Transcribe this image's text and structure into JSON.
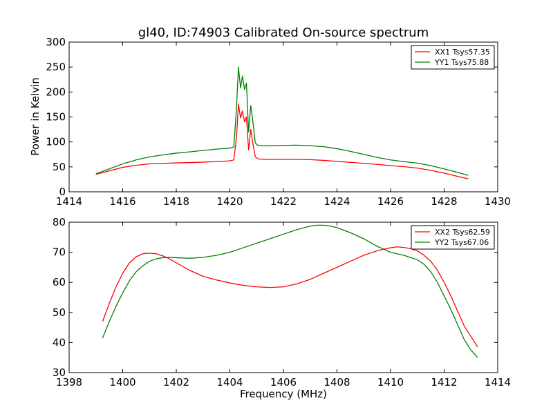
{
  "title": "gl40, ID:74903 Calibrated On-source spectrum",
  "chart_data": [
    {
      "type": "line",
      "ylabel": "Power in Kelvin",
      "xlabel": "",
      "xlim": [
        1414,
        1430
      ],
      "ylim": [
        0,
        300
      ],
      "xticks": [
        "1414",
        "1416",
        "1418",
        "1420",
        "1422",
        "1424",
        "1426",
        "1428",
        "1430"
      ],
      "yticks": [
        "0",
        "50",
        "100",
        "150",
        "200",
        "250",
        "300"
      ],
      "legend_position": "top-right",
      "series": [
        {
          "name": "XX1 Tsys57.35",
          "color": "#ff0000",
          "x": [
            1415.0,
            1415.5,
            1416.0,
            1416.5,
            1417.0,
            1417.5,
            1418.0,
            1418.5,
            1419.0,
            1419.5,
            1420.0,
            1420.15,
            1420.25,
            1420.32,
            1420.4,
            1420.47,
            1420.55,
            1420.62,
            1420.7,
            1420.78,
            1420.85,
            1420.95,
            1421.05,
            1421.3,
            1422.0,
            1422.5,
            1423.0,
            1423.5,
            1424.0,
            1424.5,
            1425.0,
            1425.5,
            1426.0,
            1426.5,
            1427.0,
            1427.5,
            1428.0,
            1428.5,
            1428.9
          ],
          "values": [
            35,
            42,
            49,
            53,
            56,
            57,
            58,
            58.5,
            59.5,
            60.5,
            62,
            64,
            110,
            176,
            148,
            162,
            140,
            150,
            84,
            125,
            100,
            70,
            66,
            65,
            65,
            65,
            64.5,
            63,
            61,
            59,
            57,
            55,
            52.5,
            50.5,
            47.5,
            43,
            37.5,
            31,
            26
          ]
        },
        {
          "name": "YY1 Tsys75.88",
          "color": "#008000",
          "x": [
            1415.0,
            1415.5,
            1416.0,
            1416.5,
            1417.0,
            1417.5,
            1418.0,
            1418.5,
            1419.0,
            1419.5,
            1420.0,
            1420.15,
            1420.25,
            1420.32,
            1420.4,
            1420.47,
            1420.55,
            1420.62,
            1420.7,
            1420.78,
            1420.85,
            1420.95,
            1421.05,
            1421.3,
            1422.0,
            1422.5,
            1423.0,
            1423.5,
            1424.0,
            1424.5,
            1425.0,
            1425.5,
            1426.0,
            1426.5,
            1427.0,
            1427.5,
            1428.0,
            1428.5,
            1428.9
          ],
          "values": [
            36,
            46,
            56,
            64,
            70,
            74,
            77.5,
            80,
            83,
            85.5,
            87.5,
            90,
            170,
            250,
            208,
            232,
            205,
            218,
            120,
            173,
            145,
            98,
            93,
            92,
            93,
            93.5,
            92.5,
            90.5,
            86.5,
            81,
            75,
            69,
            64,
            60.5,
            57.5,
            52.5,
            46,
            39,
            33
          ]
        }
      ]
    },
    {
      "type": "line",
      "ylabel": "",
      "xlabel": "Frequency (MHz)",
      "xlim": [
        1398,
        1414
      ],
      "ylim": [
        30,
        80
      ],
      "xticks": [
        "1398",
        "1400",
        "1402",
        "1404",
        "1406",
        "1408",
        "1410",
        "1412",
        "1414"
      ],
      "yticks": [
        "30",
        "40",
        "50",
        "60",
        "70",
        "80"
      ],
      "legend_position": "top-right",
      "series": [
        {
          "name": "XX2 Tsys62.59",
          "color": "#ff0000",
          "x": [
            1399.25,
            1399.5,
            1399.75,
            1400.0,
            1400.25,
            1400.5,
            1400.75,
            1401.0,
            1401.25,
            1401.5,
            1401.75,
            1402.0,
            1402.5,
            1403.0,
            1403.5,
            1404.0,
            1404.5,
            1405.0,
            1405.5,
            1406.0,
            1406.5,
            1407.0,
            1407.5,
            1408.0,
            1408.5,
            1409.0,
            1409.5,
            1410.0,
            1410.25,
            1410.5,
            1410.75,
            1411.0,
            1411.25,
            1411.5,
            1411.75,
            1412.0,
            1412.25,
            1412.5,
            1412.75,
            1413.0,
            1413.25
          ],
          "values": [
            47,
            53,
            58.5,
            63,
            66.5,
            68.5,
            69.5,
            69.7,
            69.5,
            68.8,
            67.8,
            66.5,
            64,
            62,
            60.8,
            59.8,
            59,
            58.5,
            58.3,
            58.5,
            59.5,
            61,
            63,
            65,
            67,
            69,
            70.5,
            71.5,
            71.8,
            71.6,
            71.2,
            70.5,
            69,
            67,
            64,
            60,
            55.5,
            50.5,
            45.5,
            42,
            38.5
          ]
        },
        {
          "name": "YY2 Tsys67.06",
          "color": "#008000",
          "x": [
            1399.25,
            1399.5,
            1399.75,
            1400.0,
            1400.25,
            1400.5,
            1400.75,
            1401.0,
            1401.25,
            1401.5,
            1401.75,
            1402.0,
            1402.5,
            1403.0,
            1403.5,
            1404.0,
            1404.5,
            1405.0,
            1405.5,
            1406.0,
            1406.5,
            1407.0,
            1407.25,
            1407.5,
            1407.75,
            1408.0,
            1408.5,
            1409.0,
            1409.5,
            1410.0,
            1410.5,
            1411.0,
            1411.25,
            1411.5,
            1411.75,
            1412.0,
            1412.25,
            1412.5,
            1412.75,
            1413.0,
            1413.25
          ],
          "values": [
            41.5,
            47,
            52,
            56.5,
            60.5,
            63.5,
            65.5,
            67,
            67.8,
            68.2,
            68.3,
            68.2,
            68,
            68.3,
            69,
            70,
            71.5,
            73,
            74.5,
            76,
            77.5,
            78.7,
            79,
            79,
            78.7,
            78.2,
            76.5,
            74.5,
            72,
            70,
            69,
            67.5,
            66,
            63.5,
            60,
            55.5,
            51,
            46,
            41,
            37.5,
            35
          ]
        }
      ]
    }
  ]
}
